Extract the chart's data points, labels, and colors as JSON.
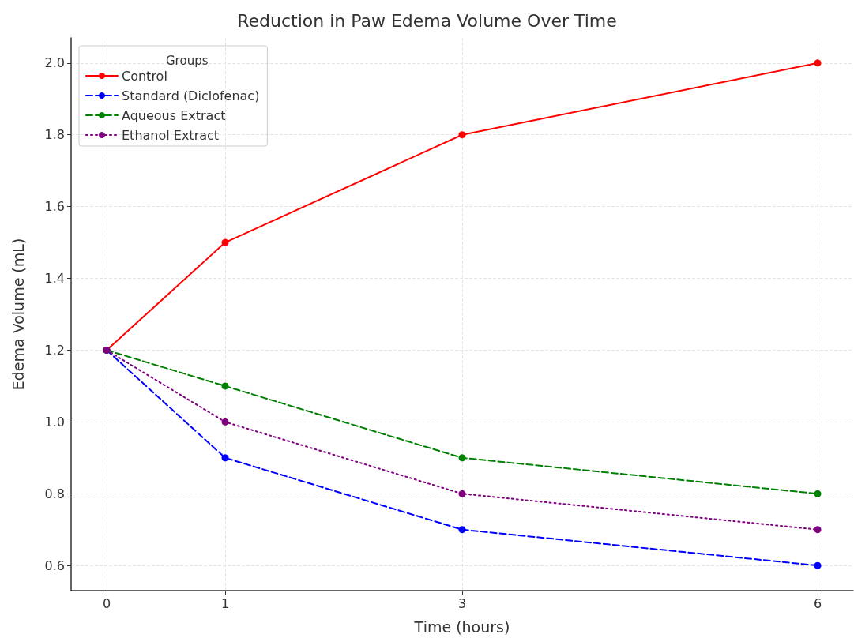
{
  "chart_data": {
    "type": "line",
    "title": "Reduction in Paw Edema Volume Over Time",
    "xlabel": "Time (hours)",
    "ylabel": "Edema Volume (mL)",
    "legend_title": "Groups",
    "x": [
      0,
      1,
      3,
      6
    ],
    "series": [
      {
        "name": "Control",
        "color": "#ff0000",
        "values": [
          1.2,
          1.5,
          1.8,
          2.0
        ],
        "line_style": "solid"
      },
      {
        "name": "Standard (Diclofenac)",
        "color": "#0000ff",
        "values": [
          1.2,
          0.9,
          0.7,
          0.6
        ],
        "line_style": "dashed"
      },
      {
        "name": "Aqueous Extract",
        "color": "#008000",
        "values": [
          1.2,
          1.1,
          0.9,
          0.8
        ],
        "line_style": "dashed"
      },
      {
        "name": "Ethanol Extract",
        "color": "#800080",
        "values": [
          1.2,
          1.0,
          0.8,
          0.7
        ],
        "line_style": "dotted"
      }
    ],
    "xlim": [
      -0.3,
      6.3
    ],
    "xticks": [
      0,
      1,
      3,
      6
    ],
    "ylim": [
      0.53,
      2.07
    ],
    "yticks": [
      0.6,
      0.8,
      {
        "value": 1,
        "label": "1.0"
      },
      1.2,
      1.4,
      1.6,
      1.8,
      {
        "value": 2,
        "label": "2.0"
      }
    ],
    "grid": true,
    "legend": "top left",
    "marker": "circle"
  }
}
